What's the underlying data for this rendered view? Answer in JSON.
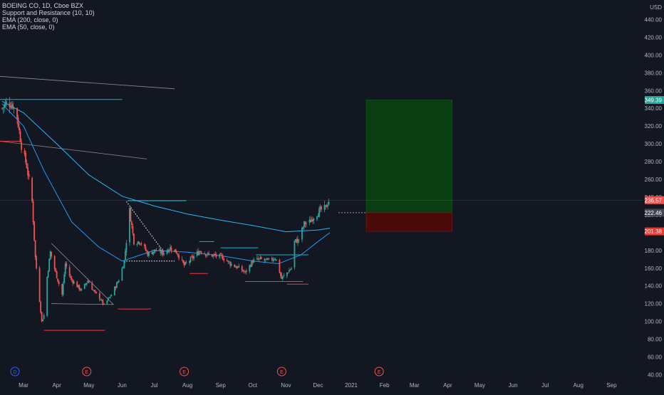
{
  "legend": {
    "symbol": "BOEING CO, 1D, Cboe BZX",
    "indicator1": "Support and Resistance (10, 10)",
    "indicator2": "EMA (200, close, 0)",
    "indicator3": "EMA (50, close, 0)"
  },
  "colors": {
    "background": "#131722",
    "up": "#26a69a",
    "down": "#ef5350",
    "ema50": "#2196f3",
    "ema200": "#29b6f6",
    "support": "#f23645",
    "resistance": "#00bcd4",
    "target_zone": "#0b3d12",
    "stop_zone": "#4a0a0a"
  },
  "chart_data": {
    "type": "candlestick",
    "y_axis": {
      "unit": "USD",
      "min": 40,
      "max": 460,
      "ticks": [
        40,
        60,
        80,
        100,
        120,
        140,
        160,
        180,
        200,
        220,
        240,
        260,
        280,
        300,
        320,
        340,
        360,
        380,
        400,
        420,
        440,
        460
      ],
      "tick_labels": [
        "40.00",
        "60.00",
        "80.00",
        "100.00",
        "120.00",
        "140.00",
        "160.00",
        "180.00",
        "200.00",
        "220.00",
        "240.00",
        "260.00",
        "280.00",
        "300.00",
        "320.00",
        "340.00",
        "360.00",
        "380.00",
        "400.00",
        "420.00",
        "440.00",
        "460.00"
      ],
      "scale": "linear"
    },
    "x_axis": {
      "range": [
        "2020-02-08",
        "2021-09-30"
      ],
      "months": [
        {
          "date": "2020-03-01",
          "label": "Mar"
        },
        {
          "date": "2020-04-01",
          "label": "Apr"
        },
        {
          "date": "2020-05-01",
          "label": "May"
        },
        {
          "date": "2020-06-01",
          "label": "Jun"
        },
        {
          "date": "2020-07-01",
          "label": "Jul"
        },
        {
          "date": "2020-08-01",
          "label": "Aug"
        },
        {
          "date": "2020-09-01",
          "label": "Sep"
        },
        {
          "date": "2020-10-01",
          "label": "Oct"
        },
        {
          "date": "2020-11-01",
          "label": "Nov"
        },
        {
          "date": "2020-12-01",
          "label": "Dec"
        },
        {
          "date": "2021-01-01",
          "label": "2021"
        },
        {
          "date": "2021-02-01",
          "label": "Feb"
        },
        {
          "date": "2021-03-01",
          "label": "Mar"
        },
        {
          "date": "2021-04-01",
          "label": "Apr"
        },
        {
          "date": "2021-05-01",
          "label": "May"
        },
        {
          "date": "2021-06-01",
          "label": "Jun"
        },
        {
          "date": "2021-07-01",
          "label": "Jul"
        },
        {
          "date": "2021-08-01",
          "label": "Aug"
        },
        {
          "date": "2021-09-01",
          "label": "Sep"
        }
      ]
    },
    "price_labels": [
      {
        "value": 349.39,
        "label": "349.39",
        "kind": "target"
      },
      {
        "value": 236.57,
        "label": "236.57",
        "kind": "last"
      },
      {
        "value": 222.46,
        "label": "222.46",
        "kind": "entry"
      },
      {
        "value": 201.38,
        "label": "201.38",
        "kind": "stop"
      }
    ],
    "position": {
      "start": "2021-01-15",
      "end": "2021-04-05",
      "target": 349.39,
      "entry": 222.46,
      "stop": 201.38
    },
    "events": [
      {
        "date": "2020-02-22",
        "label": "D"
      },
      {
        "date": "2020-04-29",
        "label": "E"
      },
      {
        "date": "2020-07-29",
        "label": "E"
      },
      {
        "date": "2020-10-28",
        "label": "E"
      },
      {
        "date": "2021-01-27",
        "label": "E"
      }
    ],
    "ohlc_anchors": [
      [
        "2020-02-10",
        340
      ],
      [
        "2020-02-14",
        346
      ],
      [
        "2020-02-20",
        344
      ],
      [
        "2020-02-24",
        330
      ],
      [
        "2020-02-28",
        298
      ],
      [
        "2020-03-04",
        275
      ],
      [
        "2020-03-09",
        235
      ],
      [
        "2020-03-12",
        172
      ],
      [
        "2020-03-18",
        100
      ],
      [
        "2020-03-20",
        107
      ],
      [
        "2020-03-23",
        150
      ],
      [
        "2020-03-26",
        178
      ],
      [
        "2020-03-31",
        155
      ],
      [
        "2020-04-06",
        130
      ],
      [
        "2020-04-09",
        165
      ],
      [
        "2020-04-14",
        148
      ],
      [
        "2020-04-20",
        140
      ],
      [
        "2020-04-24",
        135
      ],
      [
        "2020-04-30",
        146
      ],
      [
        "2020-05-06",
        133
      ],
      [
        "2020-05-12",
        125
      ],
      [
        "2020-05-15",
        118
      ],
      [
        "2020-05-22",
        130
      ],
      [
        "2020-05-29",
        147
      ],
      [
        "2020-06-03",
        168
      ],
      [
        "2020-06-08",
        225
      ],
      [
        "2020-06-12",
        190
      ],
      [
        "2020-06-18",
        190
      ],
      [
        "2020-06-25",
        176
      ],
      [
        "2020-07-02",
        180
      ],
      [
        "2020-07-09",
        177
      ],
      [
        "2020-07-16",
        183
      ],
      [
        "2020-07-22",
        178
      ],
      [
        "2020-07-29",
        163
      ],
      [
        "2020-08-06",
        172
      ],
      [
        "2020-08-13",
        180
      ],
      [
        "2020-08-20",
        175
      ],
      [
        "2020-08-27",
        174
      ],
      [
        "2020-09-03",
        172
      ],
      [
        "2020-09-10",
        165
      ],
      [
        "2020-09-18",
        160
      ],
      [
        "2020-09-24",
        155
      ],
      [
        "2020-10-01",
        168
      ],
      [
        "2020-10-08",
        170
      ],
      [
        "2020-10-15",
        168
      ],
      [
        "2020-10-22",
        172
      ],
      [
        "2020-10-28",
        148
      ],
      [
        "2020-11-02",
        155
      ],
      [
        "2020-11-06",
        160
      ],
      [
        "2020-11-09",
        190
      ],
      [
        "2020-11-13",
        192
      ],
      [
        "2020-11-18",
        210
      ],
      [
        "2020-11-23",
        212
      ],
      [
        "2020-11-27",
        218
      ],
      [
        "2020-12-03",
        225
      ],
      [
        "2020-12-08",
        228
      ],
      [
        "2020-12-11",
        236
      ]
    ],
    "ema50_path": [
      [
        "2020-02-10",
        345
      ],
      [
        "2020-03-01",
        320
      ],
      [
        "2020-03-20",
        270
      ],
      [
        "2020-04-15",
        212
      ],
      [
        "2020-05-10",
        184
      ],
      [
        "2020-06-01",
        168
      ],
      [
        "2020-07-01",
        180
      ],
      [
        "2020-08-01",
        178
      ],
      [
        "2020-09-01",
        174
      ],
      [
        "2020-10-01",
        168
      ],
      [
        "2020-10-25",
        165
      ],
      [
        "2020-11-15",
        175
      ],
      [
        "2020-12-01",
        190
      ],
      [
        "2020-12-12",
        200
      ]
    ],
    "ema200_path": [
      [
        "2020-02-10",
        348
      ],
      [
        "2020-03-01",
        335
      ],
      [
        "2020-04-01",
        300
      ],
      [
        "2020-05-01",
        265
      ],
      [
        "2020-06-01",
        241
      ],
      [
        "2020-07-01",
        230
      ],
      [
        "2020-08-01",
        221
      ],
      [
        "2020-09-01",
        214
      ],
      [
        "2020-10-01",
        208
      ],
      [
        "2020-11-01",
        201
      ],
      [
        "2020-12-01",
        203
      ],
      [
        "2020-12-12",
        205
      ]
    ],
    "lines": [
      {
        "kind": "trend",
        "from": [
          "2020-02-08",
          376
        ],
        "to": [
          "2020-07-20",
          362
        ]
      },
      {
        "kind": "trend",
        "from": [
          "2020-02-08",
          303
        ],
        "to": [
          "2020-06-24",
          283
        ]
      },
      {
        "kind": "triangle",
        "from": [
          "2020-03-27",
          188
        ],
        "to": [
          "2020-05-24",
          119
        ]
      },
      {
        "kind": "triangle",
        "from": [
          "2020-03-27",
          120
        ],
        "to": [
          "2020-05-24",
          119
        ]
      },
      {
        "kind": "triangle",
        "from": [
          "2020-06-05",
          235
        ],
        "to": [
          "2020-07-10",
          178
        ],
        "dotted": true
      },
      {
        "kind": "triangle",
        "from": [
          "2020-06-05",
          168
        ],
        "to": [
          "2020-07-20",
          168
        ],
        "dotted": true
      },
      {
        "kind": "resistance",
        "from": [
          "2020-02-08",
          350
        ],
        "to": [
          "2020-06-01",
          350
        ]
      },
      {
        "kind": "resistance",
        "from": [
          "2020-06-06",
          236
        ],
        "to": [
          "2020-07-31",
          236
        ]
      },
      {
        "kind": "resistance",
        "from": [
          "2020-08-12",
          190
        ],
        "to": [
          "2020-08-26",
          190
        ]
      },
      {
        "kind": "resistance",
        "from": [
          "2020-09-01",
          183
        ],
        "to": [
          "2020-10-06",
          183
        ]
      },
      {
        "kind": "resistance",
        "from": [
          "2020-10-04",
          175
        ],
        "to": [
          "2020-11-22",
          175
        ]
      },
      {
        "kind": "support",
        "from": [
          "2020-02-08",
          303
        ],
        "to": [
          "2020-02-28",
          303
        ]
      },
      {
        "kind": "support",
        "from": [
          "2020-03-20",
          90
        ],
        "to": [
          "2020-05-16",
          90
        ]
      },
      {
        "kind": "support",
        "from": [
          "2020-05-28",
          114
        ],
        "to": [
          "2020-06-28",
          114
        ]
      },
      {
        "kind": "support",
        "from": [
          "2020-08-03",
          154
        ],
        "to": [
          "2020-08-20",
          154
        ]
      },
      {
        "kind": "support",
        "from": [
          "2020-09-24",
          145
        ],
        "to": [
          "2020-11-17",
          145
        ]
      },
      {
        "kind": "support",
        "from": [
          "2020-11-02",
          142
        ],
        "to": [
          "2020-11-22",
          142
        ]
      }
    ]
  }
}
